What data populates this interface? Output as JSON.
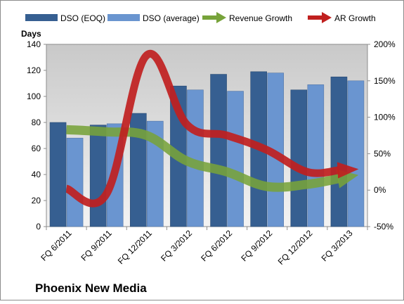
{
  "chart_data": {
    "type": "bar",
    "title": "Phoenix New Media",
    "ylabel": "Days",
    "categories": [
      "FQ 6/2011",
      "FQ 9/2011",
      "FQ 12/2011",
      "FQ 3/2012",
      "FQ 6/2012",
      "FQ 9/2012",
      "FQ 12/2012",
      "FQ 3/2013"
    ],
    "ylim": [
      0,
      140
    ],
    "y_ticks": [
      "0",
      "20",
      "40",
      "60",
      "80",
      "100",
      "120",
      "140"
    ],
    "y2lim": [
      -50,
      200
    ],
    "y2_ticks": [
      "-50%",
      "0%",
      "50%",
      "100%",
      "150%",
      "200%"
    ],
    "grid": false,
    "legend_position": "top",
    "series": [
      {
        "name": "DSO (EOQ)",
        "type": "bar",
        "axis": "left",
        "color": "#365f91",
        "values": [
          80,
          78,
          87,
          108,
          117,
          119,
          105,
          115
        ]
      },
      {
        "name": "DSO (average)",
        "type": "bar",
        "axis": "left",
        "color": "#6a95d0",
        "values": [
          68,
          79,
          81,
          105,
          104,
          118,
          109,
          112
        ]
      },
      {
        "name": "Revenue Growth",
        "type": "line-arrow",
        "axis": "right",
        "color": "#77a33a",
        "values": [
          83,
          80,
          75,
          40,
          25,
          5,
          8,
          18
        ]
      },
      {
        "name": "AR Growth",
        "type": "line-arrow",
        "axis": "right",
        "color": "#c0201f",
        "values": [
          2,
          -5,
          185,
          90,
          75,
          55,
          25,
          28
        ]
      }
    ]
  }
}
